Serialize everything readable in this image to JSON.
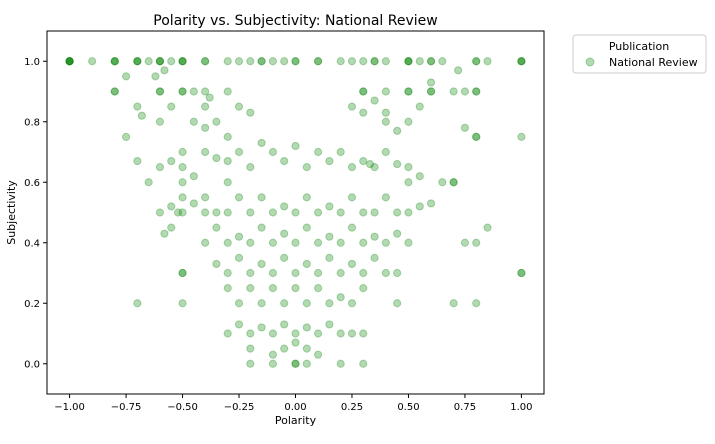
{
  "chart_data": {
    "type": "scatter",
    "title": "Polarity vs. Subjectivity: National Review",
    "xlabel": "Polarity",
    "ylabel": "Subjectivity",
    "xlim": [
      -1.1,
      1.1
    ],
    "ylim": [
      -0.1,
      1.1
    ],
    "xticks": [
      -1.0,
      -0.75,
      -0.5,
      -0.25,
      0.0,
      0.25,
      0.5,
      0.75,
      1.0
    ],
    "xtick_labels": [
      "−1.00",
      "−0.75",
      "−0.50",
      "−0.25",
      "0.00",
      "0.25",
      "0.50",
      "0.75",
      "1.00"
    ],
    "yticks": [
      0.0,
      0.2,
      0.4,
      0.6,
      0.8,
      1.0
    ],
    "ytick_labels": [
      "0.0",
      "0.2",
      "0.4",
      "0.6",
      "0.8",
      "1.0"
    ],
    "grid": false,
    "legend": {
      "title": "Publication",
      "placement": "outside-top-right",
      "entries": [
        "National Review"
      ]
    },
    "series": [
      {
        "name": "National Review",
        "color": "#008000",
        "alpha": 0.3,
        "points": [
          [
            -1.0,
            1.0
          ],
          [
            -1.0,
            1.0
          ],
          [
            -1.0,
            1.0
          ],
          [
            -1.0,
            1.0
          ],
          [
            -1.0,
            1.0
          ],
          [
            -0.9,
            1.0
          ],
          [
            -0.8,
            1.0
          ],
          [
            -0.8,
            1.0
          ],
          [
            -0.8,
            1.0
          ],
          [
            -0.7,
            1.0
          ],
          [
            -0.7,
            1.0
          ],
          [
            -0.7,
            1.0
          ],
          [
            -0.65,
            1.0
          ],
          [
            -0.6,
            1.0
          ],
          [
            -0.6,
            1.0
          ],
          [
            -0.6,
            1.0
          ],
          [
            -0.55,
            1.0
          ],
          [
            -0.5,
            1.0
          ],
          [
            -0.5,
            1.0
          ],
          [
            -0.5,
            1.0
          ],
          [
            -0.4,
            1.0
          ],
          [
            -0.4,
            1.0
          ],
          [
            -0.3,
            1.0
          ],
          [
            -0.25,
            1.0
          ],
          [
            -0.2,
            1.0
          ],
          [
            -0.15,
            1.0
          ],
          [
            -0.15,
            1.0
          ],
          [
            -0.1,
            1.0
          ],
          [
            -0.05,
            1.0
          ],
          [
            0.0,
            1.0
          ],
          [
            0.0,
            1.0
          ],
          [
            0.1,
            1.0
          ],
          [
            0.1,
            1.0
          ],
          [
            0.2,
            1.0
          ],
          [
            0.25,
            1.0
          ],
          [
            0.3,
            1.0
          ],
          [
            0.35,
            1.0
          ],
          [
            0.35,
            1.0
          ],
          [
            0.4,
            1.0
          ],
          [
            0.5,
            1.0
          ],
          [
            0.5,
            1.0
          ],
          [
            0.5,
            1.0
          ],
          [
            0.55,
            1.0
          ],
          [
            0.6,
            1.0
          ],
          [
            0.6,
            1.0
          ],
          [
            0.65,
            1.0
          ],
          [
            0.8,
            1.0
          ],
          [
            0.8,
            1.0
          ],
          [
            0.85,
            1.0
          ],
          [
            1.0,
            1.0
          ],
          [
            1.0,
            1.0
          ],
          [
            1.0,
            1.0
          ],
          [
            -0.8,
            0.9
          ],
          [
            -0.8,
            0.9
          ],
          [
            -0.6,
            0.9
          ],
          [
            -0.6,
            0.9
          ],
          [
            -0.5,
            0.9
          ],
          [
            -0.5,
            0.9
          ],
          [
            -0.45,
            0.9
          ],
          [
            -0.4,
            0.9
          ],
          [
            -0.3,
            0.9
          ],
          [
            0.3,
            0.9
          ],
          [
            0.3,
            0.9
          ],
          [
            0.4,
            0.9
          ],
          [
            0.5,
            0.9
          ],
          [
            0.5,
            0.9
          ],
          [
            0.6,
            0.9
          ],
          [
            0.6,
            0.9
          ],
          [
            0.7,
            0.9
          ],
          [
            0.75,
            0.9
          ],
          [
            0.8,
            0.9
          ],
          [
            0.8,
            0.9
          ],
          [
            -0.75,
            0.95
          ],
          [
            -0.62,
            0.95
          ],
          [
            -0.58,
            0.97
          ],
          [
            0.6,
            0.93
          ],
          [
            0.72,
            0.97
          ],
          [
            -0.7,
            0.85
          ],
          [
            -0.68,
            0.82
          ],
          [
            -0.75,
            0.75
          ],
          [
            -0.55,
            0.85
          ],
          [
            -0.45,
            0.8
          ],
          [
            -0.4,
            0.85
          ],
          [
            -0.38,
            0.88
          ],
          [
            -0.35,
            0.8
          ],
          [
            -0.4,
            0.78
          ],
          [
            -0.3,
            0.75
          ],
          [
            -0.25,
            0.85
          ],
          [
            -0.2,
            0.83
          ],
          [
            0.25,
            0.85
          ],
          [
            0.3,
            0.83
          ],
          [
            0.35,
            0.87
          ],
          [
            0.4,
            0.83
          ],
          [
            0.4,
            0.8
          ],
          [
            0.45,
            0.77
          ],
          [
            0.5,
            0.8
          ],
          [
            0.55,
            0.85
          ],
          [
            0.8,
            0.75
          ],
          [
            0.8,
            0.75
          ],
          [
            1.0,
            0.75
          ],
          [
            0.75,
            0.78
          ],
          [
            -0.6,
            0.8
          ],
          [
            -0.7,
            0.67
          ],
          [
            -0.65,
            0.6
          ],
          [
            -0.6,
            0.65
          ],
          [
            -0.55,
            0.67
          ],
          [
            -0.5,
            0.7
          ],
          [
            -0.5,
            0.65
          ],
          [
            -0.5,
            0.6
          ],
          [
            -0.45,
            0.62
          ],
          [
            -0.4,
            0.7
          ],
          [
            -0.35,
            0.68
          ],
          [
            -0.3,
            0.67
          ],
          [
            -0.3,
            0.6
          ],
          [
            -0.25,
            0.7
          ],
          [
            -0.2,
            0.65
          ],
          [
            -0.15,
            0.73
          ],
          [
            -0.1,
            0.7
          ],
          [
            -0.05,
            0.67
          ],
          [
            0.0,
            0.72
          ],
          [
            0.05,
            0.65
          ],
          [
            0.1,
            0.7
          ],
          [
            0.15,
            0.67
          ],
          [
            0.2,
            0.7
          ],
          [
            0.25,
            0.65
          ],
          [
            0.3,
            0.67
          ],
          [
            0.33,
            0.66
          ],
          [
            0.35,
            0.65
          ],
          [
            0.4,
            0.7
          ],
          [
            0.45,
            0.66
          ],
          [
            0.5,
            0.6
          ],
          [
            0.5,
            0.65
          ],
          [
            0.55,
            0.62
          ],
          [
            0.65,
            0.6
          ],
          [
            0.7,
            0.6
          ],
          [
            0.7,
            0.6
          ],
          [
            -0.55,
            0.52
          ],
          [
            -0.52,
            0.5
          ],
          [
            -0.5,
            0.5
          ],
          [
            -0.5,
            0.55
          ],
          [
            -0.45,
            0.53
          ],
          [
            -0.4,
            0.5
          ],
          [
            -0.4,
            0.55
          ],
          [
            -0.35,
            0.5
          ],
          [
            -0.3,
            0.5
          ],
          [
            -0.25,
            0.55
          ],
          [
            -0.2,
            0.5
          ],
          [
            -0.15,
            0.55
          ],
          [
            -0.1,
            0.5
          ],
          [
            -0.05,
            0.52
          ],
          [
            0.0,
            0.5
          ],
          [
            0.05,
            0.55
          ],
          [
            0.1,
            0.5
          ],
          [
            0.15,
            0.52
          ],
          [
            0.2,
            0.5
          ],
          [
            0.25,
            0.55
          ],
          [
            0.3,
            0.5
          ],
          [
            0.35,
            0.5
          ],
          [
            0.4,
            0.55
          ],
          [
            0.45,
            0.5
          ],
          [
            0.5,
            0.5
          ],
          [
            0.55,
            0.52
          ],
          [
            0.6,
            0.53
          ],
          [
            -0.58,
            0.43
          ],
          [
            -0.6,
            0.5
          ],
          [
            -0.4,
            0.4
          ],
          [
            -0.35,
            0.45
          ],
          [
            -0.3,
            0.4
          ],
          [
            -0.25,
            0.42
          ],
          [
            -0.2,
            0.4
          ],
          [
            -0.15,
            0.45
          ],
          [
            -0.1,
            0.4
          ],
          [
            -0.05,
            0.43
          ],
          [
            0.0,
            0.4
          ],
          [
            0.05,
            0.45
          ],
          [
            0.1,
            0.4
          ],
          [
            0.15,
            0.42
          ],
          [
            0.2,
            0.4
          ],
          [
            0.25,
            0.45
          ],
          [
            0.3,
            0.4
          ],
          [
            0.35,
            0.42
          ],
          [
            0.4,
            0.4
          ],
          [
            0.45,
            0.43
          ],
          [
            0.5,
            0.4
          ],
          [
            0.75,
            0.4
          ],
          [
            0.8,
            0.4
          ],
          [
            0.85,
            0.45
          ],
          [
            -0.55,
            0.45
          ],
          [
            -0.35,
            0.33
          ],
          [
            -0.3,
            0.3
          ],
          [
            -0.25,
            0.35
          ],
          [
            -0.2,
            0.3
          ],
          [
            -0.15,
            0.33
          ],
          [
            -0.1,
            0.3
          ],
          [
            -0.05,
            0.35
          ],
          [
            0.0,
            0.3
          ],
          [
            0.05,
            0.33
          ],
          [
            0.1,
            0.3
          ],
          [
            0.15,
            0.35
          ],
          [
            0.2,
            0.3
          ],
          [
            0.25,
            0.33
          ],
          [
            0.3,
            0.3
          ],
          [
            0.35,
            0.35
          ],
          [
            0.4,
            0.3
          ],
          [
            0.45,
            0.3
          ],
          [
            -0.5,
            0.3
          ],
          [
            -0.5,
            0.3
          ],
          [
            1.0,
            0.3
          ],
          [
            1.0,
            0.3
          ],
          [
            -0.3,
            0.25
          ],
          [
            -0.25,
            0.2
          ],
          [
            -0.2,
            0.25
          ],
          [
            -0.15,
            0.2
          ],
          [
            -0.1,
            0.25
          ],
          [
            -0.05,
            0.2
          ],
          [
            0.0,
            0.25
          ],
          [
            0.05,
            0.2
          ],
          [
            0.1,
            0.25
          ],
          [
            0.15,
            0.2
          ],
          [
            0.2,
            0.22
          ],
          [
            0.25,
            0.2
          ],
          [
            0.3,
            0.25
          ],
          [
            -0.7,
            0.2
          ],
          [
            -0.5,
            0.2
          ],
          [
            0.7,
            0.2
          ],
          [
            0.8,
            0.2
          ],
          [
            0.45,
            0.2
          ],
          [
            -0.3,
            0.1
          ],
          [
            -0.25,
            0.13
          ],
          [
            -0.2,
            0.1
          ],
          [
            -0.15,
            0.12
          ],
          [
            -0.1,
            0.1
          ],
          [
            -0.05,
            0.13
          ],
          [
            0.0,
            0.1
          ],
          [
            0.05,
            0.12
          ],
          [
            0.1,
            0.1
          ],
          [
            0.15,
            0.13
          ],
          [
            0.2,
            0.1
          ],
          [
            0.25,
            0.1
          ],
          [
            0.3,
            0.1
          ],
          [
            -0.2,
            0.05
          ],
          [
            -0.1,
            0.03
          ],
          [
            -0.05,
            0.05
          ],
          [
            0.0,
            0.07
          ],
          [
            0.05,
            0.05
          ],
          [
            0.1,
            0.03
          ],
          [
            -0.2,
            0.0
          ],
          [
            -0.1,
            0.0
          ],
          [
            0.0,
            0.0
          ],
          [
            0.0,
            0.0
          ],
          [
            0.05,
            0.0
          ],
          [
            0.2,
            0.0
          ],
          [
            0.3,
            0.0
          ]
        ]
      }
    ]
  }
}
